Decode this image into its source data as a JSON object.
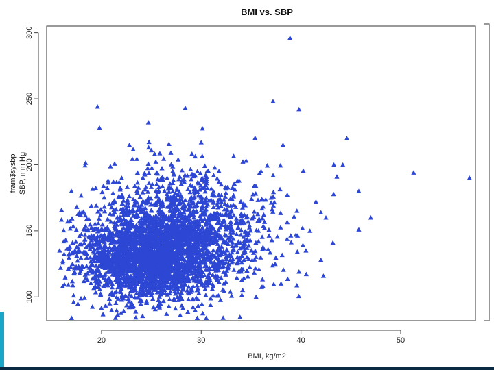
{
  "slide": {
    "accent_color": "#1aa6c8",
    "dark_color": "#0a2a44"
  },
  "chart_data": {
    "type": "scatter",
    "title": "BMI vs. SBP",
    "xlabel": "BMI, kg/m2",
    "ylabel": "fram$sysbp",
    "ylabel_overlay": "SBP, mm Hg",
    "xlim": [
      14.5,
      57.5
    ],
    "ylim": [
      82,
      305
    ],
    "x_ticks": [
      20,
      30,
      40,
      50
    ],
    "y_ticks": [
      100,
      150,
      200,
      250,
      300
    ],
    "marker": "filled-triangle",
    "marker_color": "#2d47d4",
    "grid": false,
    "points": [
      [
        15.9,
        122
      ],
      [
        16.6,
        157
      ],
      [
        17.0,
        84
      ],
      [
        17.8,
        164
      ],
      [
        19.6,
        244
      ],
      [
        19.8,
        228
      ],
      [
        24.7,
        232
      ],
      [
        28.4,
        243
      ],
      [
        25.0,
        211
      ],
      [
        22.8,
        215
      ],
      [
        30.0,
        217
      ],
      [
        37.2,
        248
      ],
      [
        38.9,
        296
      ],
      [
        39.8,
        242
      ],
      [
        44.6,
        220
      ],
      [
        43.3,
        200
      ],
      [
        44.2,
        200
      ],
      [
        51.3,
        194
      ],
      [
        56.9,
        190
      ],
      [
        45.8,
        180
      ],
      [
        45.8,
        151
      ],
      [
        43.6,
        191
      ],
      [
        42.5,
        160
      ],
      [
        40.9,
        150
      ],
      [
        39.5,
        147
      ],
      [
        38.2,
        215
      ],
      [
        41.5,
        172
      ],
      [
        36.0,
        195
      ],
      [
        47.0,
        160
      ],
      [
        42.0,
        128
      ],
      [
        43.2,
        141
      ],
      [
        35.5,
        100
      ],
      [
        36.2,
        108
      ],
      [
        38.0,
        110
      ],
      [
        40.5,
        135
      ],
      [
        39.8,
        119
      ],
      [
        37.0,
        175
      ],
      [
        34.5,
        203
      ],
      [
        33.8,
        188
      ],
      [
        30.5,
        84
      ],
      [
        29.6,
        84
      ],
      [
        16.1,
        108
      ],
      [
        17.2,
        96
      ],
      [
        16.8,
        138
      ],
      [
        15.8,
        135
      ]
    ],
    "cloud": [
      {
        "cx": 24.5,
        "cy": 126,
        "sx": 3.3,
        "sy": 14,
        "n": 1500
      },
      {
        "cx": 26.5,
        "cy": 138,
        "sx": 3.8,
        "sy": 19,
        "n": 1200
      },
      {
        "cx": 28.0,
        "cy": 150,
        "sx": 4.6,
        "sy": 23,
        "n": 550
      },
      {
        "cx": 31.0,
        "cy": 155,
        "sx": 4.6,
        "sy": 22,
        "n": 260
      },
      {
        "cx": 26.0,
        "cy": 175,
        "sx": 4.0,
        "sy": 15,
        "n": 160
      }
    ]
  }
}
